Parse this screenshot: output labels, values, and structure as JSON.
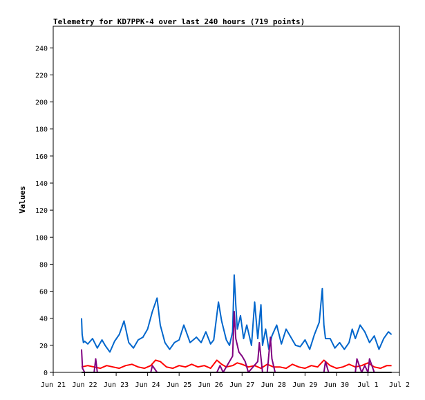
{
  "chart_data": {
    "type": "line",
    "title": "Telemetry for KD7PPK-4 over last 240 hours (719 points)",
    "xlabel": "",
    "ylabel": "Values",
    "ylim": [
      0,
      256
    ],
    "y_ticks": [
      0,
      20,
      40,
      60,
      80,
      100,
      120,
      140,
      160,
      180,
      200,
      220,
      240
    ],
    "x_ticks": [
      "Jun 21",
      "Jun 22",
      "Jun 23",
      "Jun 24",
      "Jun 25",
      "Jun 26",
      "Jun 27",
      "Jun 28",
      "Jun 29",
      "Jun 30",
      "Jul 1",
      "Jul 2"
    ],
    "xlim_days": [
      0,
      11
    ],
    "grid": false,
    "legend": "none",
    "series": [
      {
        "color": "#0066cc",
        "x_days": [
          0.9,
          0.92,
          0.96,
          1.0,
          1.1,
          1.25,
          1.4,
          1.55,
          1.65,
          1.8,
          1.95,
          2.1,
          2.25,
          2.4,
          2.55,
          2.7,
          2.85,
          3.0,
          3.15,
          3.3,
          3.4,
          3.55,
          3.7,
          3.85,
          4.0,
          4.15,
          4.35,
          4.55,
          4.7,
          4.85,
          5.0,
          5.1,
          5.25,
          5.35,
          5.5,
          5.6,
          5.7,
          5.75,
          5.8,
          5.85,
          5.95,
          6.05,
          6.15,
          6.3,
          6.4,
          6.5,
          6.6,
          6.65,
          6.75,
          6.85,
          6.95,
          7.1,
          7.25,
          7.4,
          7.55,
          7.7,
          7.85,
          8.0,
          8.15,
          8.3,
          8.45,
          8.55,
          8.6,
          8.65,
          8.8,
          8.95,
          9.1,
          9.25,
          9.4,
          9.5,
          9.6,
          9.75,
          9.9,
          10.05,
          10.2,
          10.35,
          10.5,
          10.65,
          10.75
        ],
        "values": [
          40,
          28,
          22,
          23,
          21,
          25,
          18,
          24,
          20,
          15,
          23,
          28,
          38,
          22,
          18,
          24,
          26,
          32,
          45,
          55,
          35,
          22,
          17,
          22,
          24,
          35,
          22,
          26,
          22,
          30,
          21,
          24,
          52,
          38,
          24,
          20,
          30,
          72,
          50,
          32,
          42,
          25,
          35,
          20,
          52,
          25,
          50,
          20,
          32,
          17,
          27,
          35,
          21,
          32,
          26,
          20,
          19,
          24,
          17,
          28,
          37,
          62,
          35,
          25,
          25,
          18,
          22,
          17,
          22,
          32,
          25,
          35,
          30,
          22,
          27,
          17,
          25,
          30,
          28
        ]
      },
      {
        "color": "#ff0000",
        "x_days": [
          0.9,
          1.1,
          1.3,
          1.5,
          1.7,
          1.9,
          2.1,
          2.3,
          2.5,
          2.7,
          2.9,
          3.1,
          3.25,
          3.4,
          3.6,
          3.8,
          4.0,
          4.2,
          4.4,
          4.6,
          4.8,
          5.0,
          5.2,
          5.35,
          5.5,
          5.7,
          5.85,
          6.0,
          6.2,
          6.4,
          6.6,
          6.8,
          7.0,
          7.2,
          7.4,
          7.6,
          7.8,
          8.0,
          8.2,
          8.4,
          8.6,
          8.8,
          9.0,
          9.2,
          9.4,
          9.6,
          9.8,
          10.0,
          10.2,
          10.4,
          10.6,
          10.75
        ],
        "values": [
          4,
          5,
          4,
          3,
          5,
          4,
          3,
          5,
          6,
          4,
          3,
          5,
          9,
          8,
          4,
          3,
          5,
          4,
          6,
          4,
          5,
          3,
          9,
          6,
          4,
          5,
          7,
          6,
          4,
          5,
          3,
          6,
          4,
          4,
          3,
          6,
          4,
          3,
          5,
          4,
          9,
          5,
          3,
          4,
          6,
          4,
          5,
          7,
          4,
          3,
          5,
          5
        ]
      },
      {
        "color": "#800080",
        "x_days": [
          0.9,
          0.93,
          1.0,
          1.3,
          1.35,
          1.4,
          1.9,
          2.0,
          2.1,
          3.0,
          3.1,
          3.15,
          3.3,
          3.5,
          4.0,
          4.5,
          5.0,
          5.2,
          5.3,
          5.4,
          5.7,
          5.75,
          5.8,
          5.9,
          6.0,
          6.1,
          6.2,
          6.5,
          6.55,
          6.65,
          6.8,
          6.9,
          6.95,
          7.05,
          7.2,
          8.0,
          8.6,
          8.65,
          8.75,
          9.6,
          9.65,
          9.8,
          9.9,
          10.0,
          10.05,
          10.2,
          10.4
        ],
        "values": [
          17,
          3,
          0,
          0,
          10,
          0,
          0,
          0,
          0,
          0,
          0,
          5,
          0,
          0,
          0,
          0,
          0,
          0,
          5,
          0,
          12,
          45,
          25,
          15,
          12,
          8,
          0,
          8,
          22,
          0,
          0,
          26,
          10,
          0,
          0,
          0,
          0,
          8,
          0,
          0,
          10,
          0,
          5,
          0,
          10,
          0,
          0
        ]
      },
      {
        "color": "#000000",
        "x_days": [
          0.9,
          10.75
        ],
        "values": [
          0,
          0
        ]
      }
    ]
  }
}
